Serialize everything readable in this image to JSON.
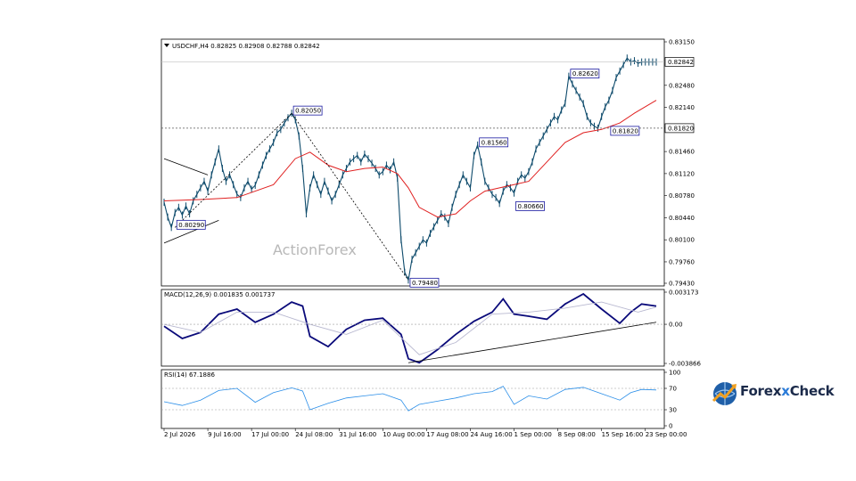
{
  "chart_data": [
    {
      "type": "line",
      "panel": "price",
      "title": "USDCHF,H4  0.82825 0.82908 0.82788 0.82842",
      "ylim": [
        0.7943,
        0.8315
      ],
      "yticks": [
        "0.83150",
        "0.82480",
        "0.82140",
        "0.81820",
        "0.81460",
        "0.81120",
        "0.80780",
        "0.80440",
        "0.80100",
        "0.79760",
        "0.79430"
      ],
      "ytick_values": [
        0.8315,
        0.8248,
        0.8214,
        0.8182,
        0.8146,
        0.8112,
        0.8078,
        0.8044,
        0.801,
        0.7976,
        0.7943
      ],
      "current_price_label": "0.82842",
      "current_price": 0.82842,
      "support_level_label": "0.81820",
      "support_level": 0.8182,
      "watermark": "ActionForex",
      "series": [
        {
          "role": "price",
          "x": [
            0,
            2,
            4,
            6,
            8,
            10,
            12,
            14,
            16,
            18,
            20,
            22,
            24,
            26,
            28,
            30,
            32,
            34,
            36,
            38,
            40,
            42,
            44,
            46,
            48,
            50,
            52,
            54,
            56,
            58,
            60,
            62,
            64,
            66,
            68,
            70,
            72,
            74,
            76,
            78,
            80,
            82,
            84,
            86,
            88,
            90,
            92,
            94,
            96,
            98,
            100,
            102,
            104,
            106,
            108,
            110,
            112,
            114,
            116,
            118,
            120,
            122,
            124,
            126,
            128,
            130,
            132,
            134,
            136,
            138,
            140,
            142,
            144,
            146,
            148,
            150,
            152,
            154,
            156,
            158,
            160,
            162,
            164,
            166,
            168,
            170,
            172,
            174,
            176,
            178,
            180,
            182,
            184,
            186,
            188,
            190,
            192,
            194,
            196,
            198,
            200,
            202,
            204,
            206,
            208,
            210,
            212,
            214,
            216,
            218,
            220,
            222,
            224,
            226,
            228,
            230,
            232,
            234,
            236,
            238,
            240,
            242,
            244,
            246,
            248,
            250,
            252,
            254,
            256,
            258,
            260,
            262,
            264,
            266,
            268,
            270
          ],
          "y": [
            0.8068,
            0.8045,
            0.8029,
            0.8052,
            0.806,
            0.8048,
            0.8062,
            0.805,
            0.807,
            0.808,
            0.809,
            0.81,
            0.8085,
            0.811,
            0.813,
            0.815,
            0.812,
            0.81,
            0.811,
            0.8095,
            0.808,
            0.8075,
            0.809,
            0.81,
            0.8088,
            0.8094,
            0.811,
            0.8125,
            0.814,
            0.815,
            0.816,
            0.8175,
            0.818,
            0.819,
            0.8198,
            0.8205,
            0.8195,
            0.817,
            0.812,
            0.805,
            0.809,
            0.811,
            0.8095,
            0.808,
            0.81,
            0.8085,
            0.807,
            0.808,
            0.8095,
            0.811,
            0.812,
            0.813,
            0.8135,
            0.814,
            0.813,
            0.8142,
            0.8135,
            0.8128,
            0.812,
            0.811,
            0.8115,
            0.8125,
            0.8118,
            0.813,
            0.8105,
            0.801,
            0.796,
            0.7948,
            0.798,
            0.799,
            0.8,
            0.801,
            0.8005,
            0.802,
            0.803,
            0.804,
            0.805,
            0.8045,
            0.8035,
            0.806,
            0.808,
            0.8095,
            0.811,
            0.81,
            0.809,
            0.814,
            0.8156,
            0.813,
            0.81,
            0.809,
            0.808,
            0.8075,
            0.8066,
            0.8085,
            0.8095,
            0.809,
            0.8082,
            0.81,
            0.811,
            0.8105,
            0.8115,
            0.813,
            0.815,
            0.816,
            0.817,
            0.818,
            0.819,
            0.82,
            0.8195,
            0.821,
            0.822,
            0.8262,
            0.825,
            0.824,
            0.823,
            0.822,
            0.82,
            0.819,
            0.8185,
            0.8182,
            0.82,
            0.8215,
            0.8225,
            0.824,
            0.826,
            0.827,
            0.828,
            0.829,
            0.8284,
            0.8286,
            0.8282,
            0.8284,
            0.8284,
            0.8284,
            0.8284,
            0.8284
          ]
        },
        {
          "role": "moving-average",
          "x": [
            0,
            20,
            40,
            60,
            72,
            80,
            90,
            100,
            110,
            120,
            128,
            134,
            140,
            150,
            160,
            168,
            176,
            184,
            192,
            200,
            210,
            220,
            230,
            240,
            250,
            258,
            270
          ],
          "y": [
            0.807,
            0.8072,
            0.8075,
            0.8095,
            0.8135,
            0.8145,
            0.8125,
            0.8115,
            0.812,
            0.8122,
            0.8112,
            0.809,
            0.806,
            0.8045,
            0.805,
            0.807,
            0.8085,
            0.809,
            0.8095,
            0.81,
            0.813,
            0.816,
            0.8175,
            0.818,
            0.819,
            0.8205,
            0.8225
          ]
        }
      ],
      "annotations": [
        {
          "label": "0.80290",
          "x": 6,
          "y": 0.8029
        },
        {
          "label": "0.82050",
          "x": 70,
          "y": 0.8205
        },
        {
          "label": "0.79480",
          "x": 134,
          "y": 0.7948
        },
        {
          "label": "0.81560",
          "x": 172,
          "y": 0.8156
        },
        {
          "label": "0.80660",
          "x": 192,
          "y": 0.8066
        },
        {
          "label": "0.82620",
          "x": 222,
          "y": 0.8262
        },
        {
          "label": "0.81820",
          "x": 244,
          "y": 0.8182
        }
      ],
      "trendlines": [
        {
          "style": "solid",
          "points": [
            [
              0,
              0.8135
            ],
            [
              24,
              0.811
            ]
          ]
        },
        {
          "style": "solid",
          "points": [
            [
              0,
              0.8005
            ],
            [
              30,
              0.804
            ]
          ]
        },
        {
          "style": "dotted",
          "points": [
            [
              6,
              0.8029
            ],
            [
              70,
              0.8205
            ]
          ]
        },
        {
          "style": "dotted",
          "points": [
            [
              70,
              0.8205
            ],
            [
              134,
              0.7948
            ]
          ]
        }
      ]
    },
    {
      "type": "line",
      "panel": "macd",
      "title": "MACD(12,26,9) 0.001835 0.001737",
      "ylim": [
        -0.003866,
        0.003173
      ],
      "yticks": [
        "0.003173",
        "0.00",
        "-0.003866"
      ],
      "ytick_values": [
        0.003173,
        0,
        -0.003866
      ],
      "series": [
        {
          "role": "macd",
          "x": [
            0,
            10,
            20,
            30,
            40,
            50,
            60,
            70,
            76,
            80,
            90,
            100,
            110,
            120,
            130,
            134,
            140,
            150,
            160,
            170,
            180,
            186,
            192,
            200,
            210,
            220,
            230,
            240,
            250,
            256,
            262,
            270
          ],
          "y": [
            -0.0002,
            -0.0014,
            -0.0008,
            0.001,
            0.0015,
            0.0002,
            0.001,
            0.0022,
            0.0018,
            -0.0012,
            -0.0022,
            -0.0005,
            0.0004,
            0.0006,
            -0.001,
            -0.0034,
            -0.0038,
            -0.0025,
            -0.001,
            0.0003,
            0.0012,
            0.0025,
            0.001,
            0.0008,
            0.0005,
            0.002,
            0.003,
            0.0015,
            0.0001,
            0.0012,
            0.002,
            0.0018
          ]
        },
        {
          "role": "signal",
          "x": [
            0,
            20,
            40,
            60,
            80,
            100,
            120,
            140,
            160,
            180,
            200,
            220,
            240,
            260,
            270
          ],
          "y": [
            0.0,
            -0.0008,
            0.0012,
            0.0012,
            0.0,
            -0.001,
            0.0004,
            -0.003,
            -0.0018,
            0.001,
            0.0012,
            0.0016,
            0.0022,
            0.0012,
            0.0017
          ]
        }
      ],
      "trendlines": [
        {
          "style": "solid",
          "points": [
            [
              134,
              -0.0038
            ],
            [
              270,
              0.0002
            ]
          ]
        }
      ]
    },
    {
      "type": "line",
      "panel": "rsi",
      "title": "RSI(14) 67.1886",
      "ylim": [
        0,
        100
      ],
      "yticks": [
        "100",
        "70",
        "30",
        "0"
      ],
      "ytick_values": [
        100,
        70,
        30,
        0
      ],
      "levels": [
        70,
        30
      ],
      "series": [
        {
          "role": "rsi",
          "x": [
            0,
            10,
            20,
            30,
            40,
            50,
            60,
            70,
            76,
            80,
            90,
            100,
            110,
            120,
            130,
            134,
            140,
            150,
            160,
            170,
            180,
            186,
            192,
            200,
            210,
            220,
            230,
            240,
            250,
            256,
            262,
            270
          ],
          "y": [
            45,
            38,
            48,
            66,
            70,
            44,
            62,
            71,
            65,
            30,
            42,
            52,
            56,
            60,
            48,
            28,
            40,
            46,
            52,
            60,
            64,
            74,
            40,
            56,
            50,
            68,
            72,
            60,
            48,
            62,
            68,
            67
          ]
        }
      ]
    }
  ],
  "x_axis": {
    "tick_labels": [
      "2 Jul 2026",
      "9 Jul 16:00",
      "17 Jul 00:00",
      "24 Jul 08:00",
      "31 Jul 16:00",
      "10 Aug 00:00",
      "17 Aug 08:00",
      "24 Aug 16:00",
      "1 Sep 00:00",
      "8 Sep 08:00",
      "15 Sep 16:00",
      "23 Sep 00:00"
    ],
    "tick_index": [
      0,
      24,
      48,
      72,
      96,
      120,
      144,
      168,
      192,
      216,
      240,
      264
    ]
  },
  "brand": {
    "prefix": "Forex",
    "x_letter": "x",
    "suffix": "Check"
  }
}
